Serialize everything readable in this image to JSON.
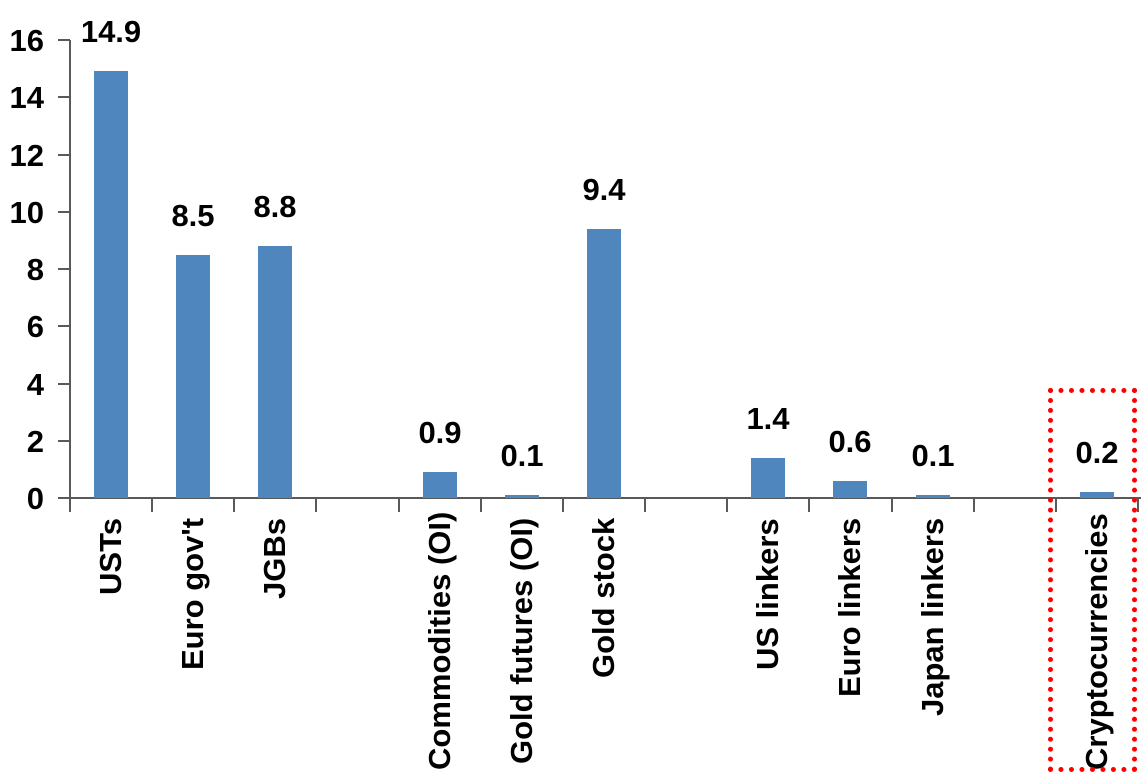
{
  "chart_data": {
    "type": "bar",
    "title": "",
    "xlabel": "",
    "ylabel": "",
    "categories": [
      "USTs",
      "Euro gov't",
      "JGBs",
      "Commodities (OI)",
      "Gold futures (OI)",
      "Gold stock",
      "US linkers",
      "Euro linkers",
      "Japan linkers",
      "Cryptocurrencies"
    ],
    "values": [
      14.9,
      8.5,
      8.8,
      0.9,
      0.1,
      9.4,
      1.4,
      0.6,
      0.1,
      0.2
    ],
    "value_labels": [
      "14.9",
      "8.5",
      "8.8",
      "0.9",
      "0.1",
      "9.4",
      "1.4",
      "0.6",
      "0.1",
      "0.2"
    ],
    "slots": [
      0,
      1,
      2,
      4,
      5,
      6,
      8,
      9,
      10,
      12
    ],
    "total_slots": 13,
    "group_gaps_after": [
      "JGBs",
      "Gold stock",
      "Japan linkers"
    ],
    "ylim": [
      0,
      16
    ],
    "yticks": [
      0,
      2,
      4,
      6,
      8,
      10,
      12,
      14,
      16
    ],
    "ytick_labels": [
      "0",
      "2",
      "4",
      "6",
      "8",
      "10",
      "12",
      "14",
      "16"
    ],
    "grid": false,
    "legend": false,
    "colors": {
      "bar": "#4E86BD",
      "axis": "#595959",
      "text": "#000000",
      "highlight_box": "#FF0000"
    },
    "annotation": {
      "type": "dotted-box",
      "target": "Cryptocurrencies",
      "style": "red-dotted-rectangle"
    }
  }
}
